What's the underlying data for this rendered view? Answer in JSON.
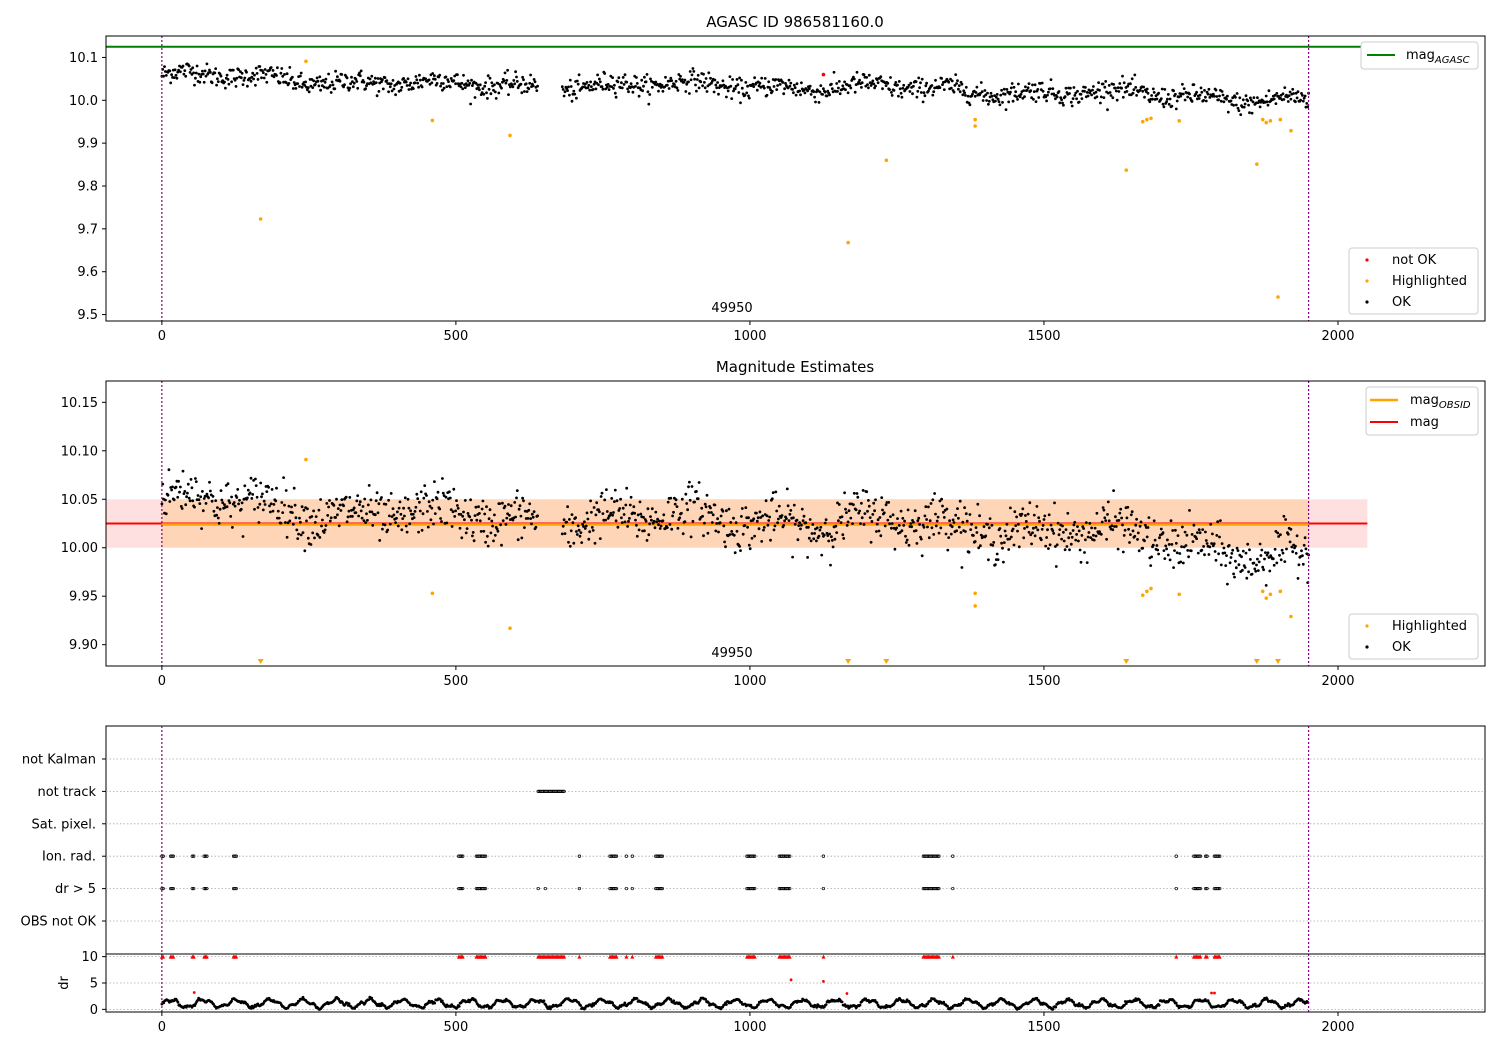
{
  "figure": {
    "background": "#ffffff"
  },
  "chart_data": [
    {
      "type": "scatter",
      "title": "AGASC ID 986581160.0",
      "xlabel": "",
      "ylabel": "",
      "xlim": [
        -95,
        2250
      ],
      "ylim": [
        9.485,
        10.15
      ],
      "x_ticks": [
        0,
        500,
        1000,
        1500,
        2000
      ],
      "y_ticks": [
        9.5,
        9.6,
        9.7,
        9.8,
        9.9,
        10.0,
        10.1
      ],
      "y_tick_labels": [
        "9.5",
        "9.6",
        "9.7",
        "9.8",
        "9.9",
        "10.0",
        "10.1"
      ],
      "vlines_x": [
        0,
        1950
      ],
      "vline_color": "#800080",
      "obsid_label": "49950",
      "mag_agasc": 10.125,
      "mag_agasc_color": "#008000",
      "legend_top": [
        {
          "label": "mag",
          "sub": "AGASC",
          "color": "#008000"
        }
      ],
      "legend_bottom": [
        {
          "label": "not OK",
          "color": "#ff0000"
        },
        {
          "label": "Highlighted",
          "color": "#ffa500"
        },
        {
          "label": "OK",
          "color": "#000000"
        }
      ],
      "ok_series": {
        "name": "OK",
        "color": "#000000",
        "x_range": [
          0,
          1950
        ],
        "gaps": [
          [
            640,
            680
          ]
        ],
        "trend": [
          [
            0,
            10.06
          ],
          [
            500,
            10.035
          ],
          [
            1000,
            10.035
          ],
          [
            1500,
            10.02
          ],
          [
            1950,
            10.0
          ]
        ],
        "spread": 0.022
      },
      "not_ok_points": [
        {
          "x": 1125,
          "y": 10.06
        }
      ],
      "highlighted_points": [
        {
          "x": 168,
          "y": 9.723
        },
        {
          "x": 245,
          "y": 10.091
        },
        {
          "x": 460,
          "y": 9.953
        },
        {
          "x": 592,
          "y": 9.918
        },
        {
          "x": 1167,
          "y": 9.668
        },
        {
          "x": 1232,
          "y": 9.86
        },
        {
          "x": 1383,
          "y": 9.955
        },
        {
          "x": 1383,
          "y": 9.94
        },
        {
          "x": 1640,
          "y": 9.837
        },
        {
          "x": 1668,
          "y": 9.95
        },
        {
          "x": 1675,
          "y": 9.955
        },
        {
          "x": 1682,
          "y": 9.958
        },
        {
          "x": 1730,
          "y": 9.952
        },
        {
          "x": 1862,
          "y": 9.851
        },
        {
          "x": 1872,
          "y": 9.955
        },
        {
          "x": 1878,
          "y": 9.948
        },
        {
          "x": 1885,
          "y": 9.952
        },
        {
          "x": 1898,
          "y": 9.541
        },
        {
          "x": 1902,
          "y": 9.955
        },
        {
          "x": 1920,
          "y": 9.929
        }
      ]
    },
    {
      "type": "scatter",
      "title": "Magnitude Estimates",
      "xlabel": "",
      "ylabel": "",
      "xlim": [
        -95,
        2250
      ],
      "ylim": [
        9.878,
        10.172
      ],
      "x_ticks": [
        0,
        500,
        1000,
        1500,
        2000
      ],
      "y_ticks": [
        9.9,
        9.95,
        10.0,
        10.05,
        10.1,
        10.15
      ],
      "y_tick_labels": [
        "9.90",
        "9.95",
        "10.00",
        "10.05",
        "10.10",
        "10.15"
      ],
      "vlines_x": [
        0,
        1950
      ],
      "obsid_label": "49950",
      "mag": 10.025,
      "mag_band": [
        10.0,
        10.05
      ],
      "mag_color": "#ff0000",
      "mag_obsid": 10.024,
      "mag_obsid_band": [
        10.0,
        10.05
      ],
      "mag_obsid_color": "#ffa500",
      "band_x_range": [
        -95,
        2050
      ],
      "obsid_x_range": [
        0,
        1950
      ],
      "legend_top": [
        {
          "label": "mag",
          "sub": "OBSID",
          "color": "#ffa500"
        },
        {
          "label": "mag",
          "sub": "",
          "color": "#ff0000"
        }
      ],
      "legend_bottom": [
        {
          "label": "Highlighted",
          "color": "#ffa500"
        },
        {
          "label": "OK",
          "color": "#000000"
        }
      ],
      "ok_series": {
        "name": "OK",
        "color": "#000000",
        "x_range": [
          0,
          1950
        ],
        "gaps": [
          [
            640,
            680
          ]
        ],
        "trend": [
          [
            0,
            10.05
          ],
          [
            500,
            10.03
          ],
          [
            1000,
            10.03
          ],
          [
            1500,
            10.02
          ],
          [
            1950,
            9.99
          ]
        ],
        "spread": 0.022
      },
      "highlighted_points": [
        {
          "x": 245,
          "y": 10.091
        },
        {
          "x": 460,
          "y": 9.953
        },
        {
          "x": 592,
          "y": 9.917
        },
        {
          "x": 1383,
          "y": 9.953
        },
        {
          "x": 1383,
          "y": 9.94
        },
        {
          "x": 1668,
          "y": 9.951
        },
        {
          "x": 1675,
          "y": 9.955
        },
        {
          "x": 1682,
          "y": 9.958
        },
        {
          "x": 1730,
          "y": 9.952
        },
        {
          "x": 1872,
          "y": 9.955
        },
        {
          "x": 1878,
          "y": 9.948
        },
        {
          "x": 1885,
          "y": 9.952
        },
        {
          "x": 1902,
          "y": 9.955
        },
        {
          "x": 1920,
          "y": 9.929
        }
      ],
      "offscale_markers_x": [
        168,
        1167,
        1232,
        1640,
        1862,
        1898
      ]
    },
    {
      "type": "scatter",
      "title": "",
      "xlim": [
        -95,
        2250
      ],
      "x_ticks": [
        0,
        500,
        1000,
        1500,
        2000
      ],
      "vlines_x": [
        0,
        1950
      ],
      "flag_rows": [
        "not Kalman",
        "not track",
        "Sat. pixel.",
        "Ion. rad.",
        "dr > 5",
        "OBS not OK"
      ],
      "flag_ranges": {
        "not Kalman": [],
        "not track": [
          [
            640,
            685
          ]
        ],
        "Sat. pixel.": [],
        "Ion. rad.": [
          [
            0,
            3
          ],
          [
            15,
            20
          ],
          [
            52,
            56
          ],
          [
            72,
            78
          ],
          [
            122,
            128
          ],
          [
            505,
            512
          ],
          [
            535,
            552
          ],
          [
            710,
            712
          ],
          [
            762,
            775
          ],
          [
            790,
            792
          ],
          [
            800,
            802
          ],
          [
            840,
            852
          ],
          [
            995,
            1010
          ],
          [
            1050,
            1068
          ],
          [
            1125,
            1127
          ],
          [
            1295,
            1322
          ],
          [
            1345,
            1347
          ],
          [
            1725,
            1727
          ],
          [
            1755,
            1768
          ],
          [
            1775,
            1778
          ],
          [
            1790,
            1800
          ]
        ],
        "dr > 5": [
          [
            0,
            3
          ],
          [
            15,
            20
          ],
          [
            52,
            56
          ],
          [
            72,
            78
          ],
          [
            122,
            128
          ],
          [
            505,
            512
          ],
          [
            535,
            552
          ],
          [
            640,
            642
          ],
          [
            652,
            654
          ],
          [
            710,
            712
          ],
          [
            762,
            775
          ],
          [
            790,
            792
          ],
          [
            800,
            802
          ],
          [
            840,
            852
          ],
          [
            995,
            1010
          ],
          [
            1050,
            1068
          ],
          [
            1125,
            1127
          ],
          [
            1295,
            1322
          ],
          [
            1345,
            1347
          ],
          [
            1725,
            1727
          ],
          [
            1755,
            1768
          ],
          [
            1775,
            1778
          ],
          [
            1790,
            1800
          ]
        ],
        "OBS not OK": []
      }
    },
    {
      "type": "scatter",
      "title": "",
      "ylabel": "dr",
      "xlim": [
        -95,
        2250
      ],
      "ylim": [
        -0.5,
        10.5
      ],
      "x_ticks": [
        0,
        500,
        1000,
        1500,
        2000
      ],
      "x_tick_labels": [
        "0",
        "500",
        "1000",
        "1500",
        "2000"
      ],
      "y_ticks": [
        0,
        5,
        10
      ],
      "y_tick_labels": [
        "0",
        "5",
        "10"
      ],
      "vlines_x": [
        0,
        1950
      ],
      "ok_series": {
        "name": "dr",
        "color": "#000000",
        "x_range": [
          0,
          1950
        ],
        "baseline": 1.1,
        "amplitude": 0.7
      },
      "red_points": [
        {
          "x": 55,
          "y": 3.2
        },
        {
          "x": 1070,
          "y": 5.6
        },
        {
          "x": 1125,
          "y": 5.3
        },
        {
          "x": 1165,
          "y": 3.0
        },
        {
          "x": 1785,
          "y": 3.1
        },
        {
          "x": 1790,
          "y": 3.1
        }
      ],
      "red_ranges_at_10": [
        [
          0,
          3
        ],
        [
          15,
          20
        ],
        [
          52,
          56
        ],
        [
          72,
          78
        ],
        [
          122,
          128
        ],
        [
          505,
          512
        ],
        [
          535,
          552
        ],
        [
          640,
          685
        ],
        [
          710,
          712
        ],
        [
          762,
          775
        ],
        [
          790,
          792
        ],
        [
          800,
          802
        ],
        [
          840,
          852
        ],
        [
          995,
          1010
        ],
        [
          1050,
          1068
        ],
        [
          1125,
          1127
        ],
        [
          1295,
          1322
        ],
        [
          1345,
          1347
        ],
        [
          1725,
          1727
        ],
        [
          1755,
          1768
        ],
        [
          1775,
          1778
        ],
        [
          1790,
          1800
        ]
      ]
    }
  ]
}
